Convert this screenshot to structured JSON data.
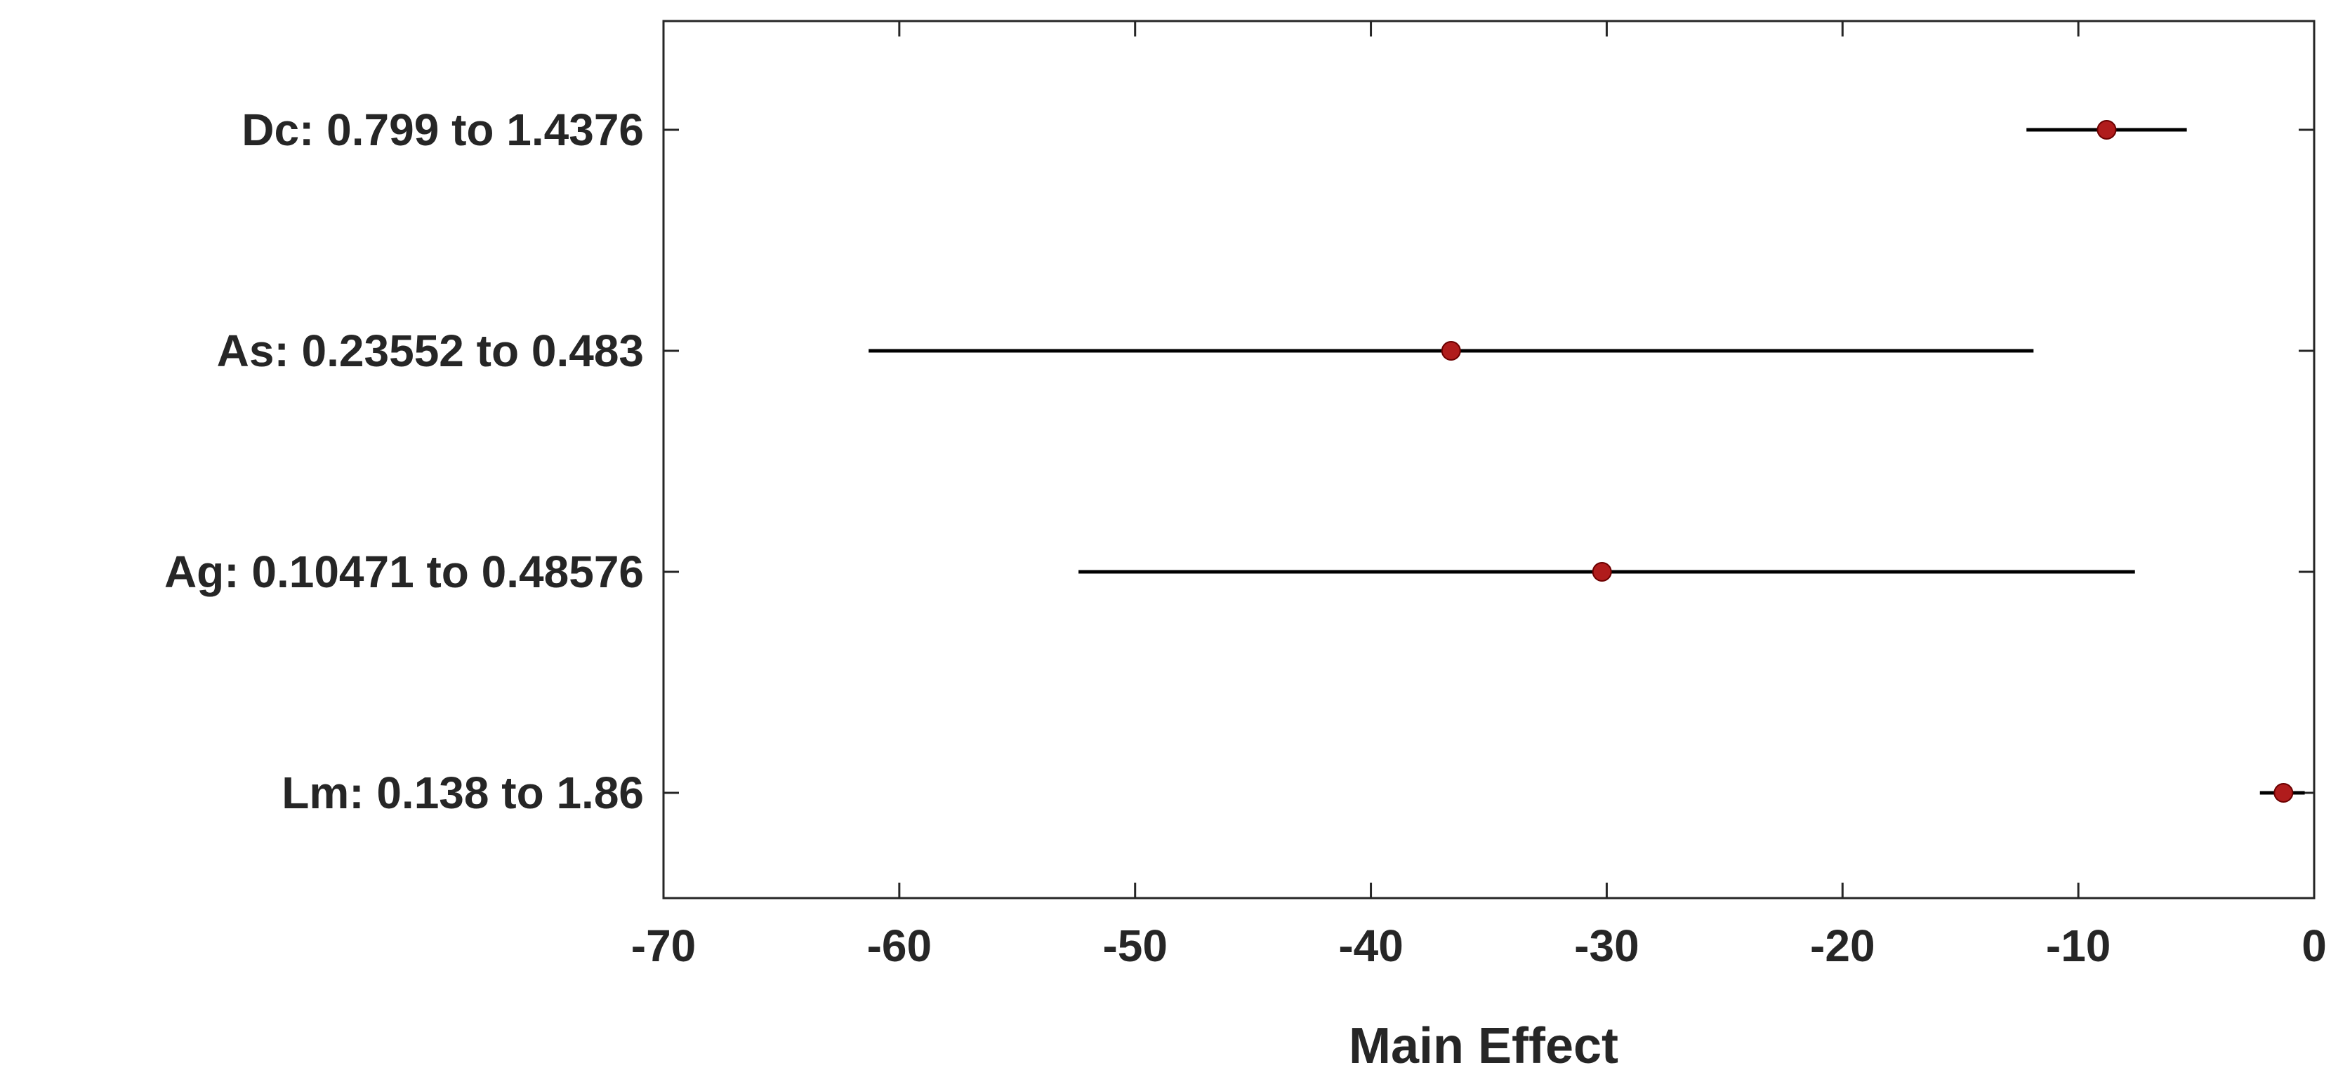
{
  "chart_data": {
    "type": "scatter",
    "title": "",
    "xlabel": "Main Effect",
    "ylabel": "",
    "xlim": [
      -70,
      0
    ],
    "xticks": [
      "-70",
      "-60",
      "-50",
      "-40",
      "-30",
      "-20",
      "-10",
      "0"
    ],
    "xtick_values": [
      -70,
      -60,
      -50,
      -40,
      -30,
      -20,
      -10,
      0
    ],
    "grid": false,
    "categories": [
      "Dc: 0.799 to 1.4376",
      "As: 0.23552 to 0.483",
      "Ag: 0.10471 to 0.48576",
      "Lm: 0.138 to 1.86"
    ],
    "series": [
      {
        "values": [
          -8.8,
          -36.6,
          -30.2,
          -1.3
        ],
        "lower": [
          -12.2,
          -61.3,
          -52.4,
          -2.3
        ],
        "upper": [
          -5.4,
          -11.9,
          -7.6,
          -0.4
        ]
      }
    ],
    "colors": {
      "point": "#b01c1c",
      "interval": "#000000",
      "axis": "#262626"
    }
  }
}
